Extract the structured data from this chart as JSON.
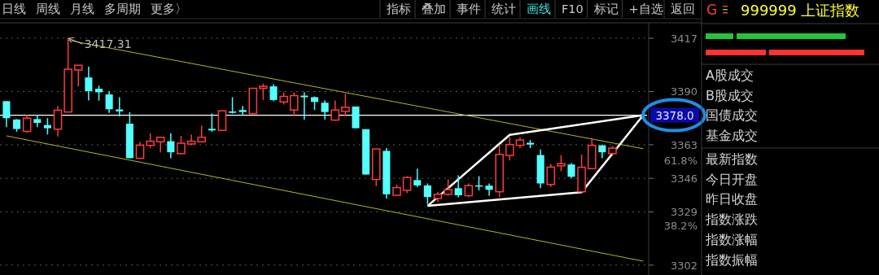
{
  "chart_data": [
    {
      "type": "candlestick",
      "categories": [
        null,
        null,
        null,
        null,
        null,
        null,
        null,
        null,
        null,
        null,
        null,
        null,
        null,
        null,
        null,
        null,
        null,
        null,
        null,
        null,
        null,
        null,
        null,
        null,
        null,
        null,
        null,
        null,
        null,
        null,
        null,
        null,
        null,
        null,
        null,
        null,
        null,
        null,
        null,
        null,
        null,
        null,
        null,
        null,
        null,
        null,
        null,
        null,
        null,
        null,
        null,
        null,
        null,
        null,
        null,
        null,
        null,
        null,
        null,
        null,
        null,
        null,
        null
      ],
      "ohlc": [
        [
          3385.1,
          3385.1,
          3371.9,
          3376.5
        ],
        [
          3375.8,
          3376.0,
          3369.6,
          3371.0
        ],
        [
          3369.8,
          3378.1,
          3369.1,
          3376.5
        ],
        [
          3376.0,
          3378.1,
          3371.9,
          3374.1
        ],
        [
          3373.0,
          3376.5,
          3368.2,
          3371.4
        ],
        [
          3370.9,
          3382.7,
          3367.2,
          3380.5
        ],
        [
          3379.6,
          3417.31,
          3379.6,
          3401.3
        ],
        [
          3400.9,
          3403.3,
          3392.6,
          3403.3
        ],
        [
          3397.1,
          3402.6,
          3385.4,
          3390.2
        ],
        [
          3391.4,
          3393.0,
          3385.4,
          3389.6
        ],
        [
          3388.5,
          3390.2,
          3379.2,
          3381.0
        ],
        [
          3380.9,
          3387.1,
          3377.4,
          3379.9
        ],
        [
          3373.7,
          3379.5,
          3356.2,
          3356.2
        ],
        [
          3356.1,
          3364.5,
          3356.1,
          3362.8
        ],
        [
          3362.7,
          3368.9,
          3361.3,
          3364.8
        ],
        [
          3364.5,
          3366.8,
          3359.2,
          3366.8
        ],
        [
          3364.8,
          3368.9,
          3356.2,
          3359.2
        ],
        [
          3358.5,
          3367.5,
          3358.5,
          3363.8
        ],
        [
          3363.4,
          3368.2,
          3362.7,
          3364.8
        ],
        [
          3364.5,
          3372.7,
          3364.5,
          3366.8
        ],
        [
          3371.1,
          3378.8,
          3369.6,
          3370.3
        ],
        [
          3370.3,
          3380.2,
          3370.3,
          3380.2
        ],
        [
          3379.9,
          3387.1,
          3378.8,
          3379.2
        ],
        [
          3380.6,
          3382.7,
          3377.8,
          3379.6
        ],
        [
          3378.8,
          3391.6,
          3378.8,
          3391.6
        ],
        [
          3391.6,
          3394.0,
          3385.7,
          3392.6
        ],
        [
          3392.6,
          3393.7,
          3385.0,
          3385.7
        ],
        [
          3384.7,
          3389.6,
          3383.4,
          3387.5
        ],
        [
          3380.6,
          3389.6,
          3377.4,
          3387.9
        ],
        [
          3387.9,
          3389.6,
          3375.8,
          3387.1
        ],
        [
          3387.1,
          3387.5,
          3380.6,
          3384.7
        ],
        [
          3384.3,
          3385.4,
          3375.8,
          3379.6
        ],
        [
          3375.5,
          3385.4,
          3375.1,
          3380.6
        ],
        [
          3379.9,
          3388.9,
          3377.8,
          3382.0
        ],
        [
          3382.4,
          3382.4,
          3371.4,
          3371.4
        ],
        [
          3370.9,
          3370.9,
          3347.9,
          3347.9
        ],
        [
          3345.4,
          3360.9,
          3342.0,
          3360.9
        ],
        [
          3359.9,
          3361.3,
          3335.8,
          3337.9
        ],
        [
          3337.4,
          3342.7,
          3337.2,
          3341.3
        ],
        [
          3339.9,
          3347.1,
          3338.5,
          3346.4
        ],
        [
          3345.1,
          3350.9,
          3341.6,
          3342.4
        ],
        [
          3342.4,
          3343.4,
          3333.0,
          3336.5
        ],
        [
          3335.8,
          3339.2,
          3334.1,
          3337.9
        ],
        [
          3337.9,
          3345.4,
          3337.2,
          3340.2
        ],
        [
          3341.0,
          3347.5,
          3336.4,
          3337.4
        ],
        [
          3337.2,
          3343.4,
          3336.4,
          3342.3
        ],
        [
          3342.4,
          3347.1,
          3339.9,
          3341.8
        ],
        [
          3342.3,
          3343.4,
          3337.2,
          3340.2
        ],
        [
          3339.2,
          3362.7,
          3336.4,
          3358.1
        ],
        [
          3357.6,
          3366.8,
          3355.1,
          3363.1
        ],
        [
          3362.7,
          3366.8,
          3361.3,
          3365.4
        ],
        [
          3364.0,
          3365.4,
          3361.3,
          3363.1
        ],
        [
          3357.8,
          3360.6,
          3341.0,
          3343.4
        ],
        [
          3342.9,
          3353.3,
          3341.6,
          3351.7
        ],
        [
          3352.3,
          3357.8,
          3349.6,
          3353.4
        ],
        [
          3353.0,
          3353.7,
          3346.1,
          3346.8
        ],
        [
          3339.2,
          3358.1,
          3339.2,
          3351.6
        ],
        [
          3350.9,
          3366.4,
          3350.9,
          3362.7
        ],
        [
          3362.7,
          3363.1,
          3356.2,
          3359.2
        ],
        [
          3358.5,
          3362.4,
          3358.1,
          3361.3
        ],
        null,
        null,
        null
      ],
      "colors": [
        "#54ffff",
        "#54ffff",
        "#ff3b3b",
        "#54ffff",
        "#54ffff",
        "#ff3b3b",
        "#ff3b3b",
        "#ff3b3b",
        "#54ffff",
        "#54ffff",
        "#54ffff",
        "#54ffff",
        "#54ffff",
        "#ff3b3b",
        "#ff3b3b",
        "#ff3b3b",
        "#54ffff",
        "#ff3b3b",
        "#ff3b3b",
        "#ff3b3b",
        "#54ffff",
        "#ff3b3b",
        "#54ffff",
        "#54ffff",
        "#ff3b3b",
        "#ff3b3b",
        "#54ffff",
        "#ff3b3b",
        "#ff3b3b",
        "#54ffff",
        "#54ffff",
        "#54ffff",
        "#ff3b3b",
        "#ff3b3b",
        "#54ffff",
        "#54ffff",
        "#ff3b3b",
        "#54ffff",
        "#ff3b3b",
        "#ff3b3b",
        "#54ffff",
        "#54ffff",
        "#ff3b3b",
        "#ff3b3b",
        "#54ffff",
        "#ff3b3b",
        "#54ffff",
        "#54ffff",
        "#ff3b3b",
        "#ff3b3b",
        "#ff3b3b",
        "#54ffff",
        "#54ffff",
        "#ff3b3b",
        "#ff3b3b",
        "#54ffff",
        "#ff3b3b",
        "#ff3b3b",
        "#54ffff",
        "#ff3b3b",
        null,
        null,
        null
      ],
      "series": [
        {
          "type": "line",
          "color": "#b4b428",
          "values": [
            null,
            null,
            null,
            null,
            null,
            null,
            3416,
            null,
            null,
            null,
            null,
            null,
            null,
            null,
            null,
            null,
            null,
            null,
            null,
            null,
            null,
            null,
            null,
            null,
            null,
            null,
            null,
            null,
            null,
            null,
            null,
            null,
            null,
            null,
            null,
            null,
            null,
            null,
            null,
            null,
            null,
            null,
            null,
            null,
            null,
            null,
            null,
            null,
            null,
            null,
            null,
            null,
            null,
            null,
            null,
            null,
            null,
            null,
            null,
            null,
            null,
            null,
            3361
          ]
        },
        {
          "type": "line",
          "color": "#b4b428",
          "values": [
            3367.5,
            null,
            null,
            null,
            null,
            null,
            null,
            null,
            null,
            null,
            null,
            null,
            null,
            null,
            null,
            null,
            null,
            null,
            null,
            null,
            null,
            null,
            null,
            null,
            null,
            null,
            null,
            null,
            null,
            null,
            null,
            null,
            null,
            null,
            null,
            null,
            null,
            null,
            null,
            null,
            null,
            null,
            null,
            null,
            null,
            null,
            null,
            null,
            null,
            null,
            null,
            null,
            null,
            null,
            null,
            null,
            null,
            null,
            null,
            null,
            null,
            null,
            3304
          ]
        },
        {
          "type": "line",
          "color": "#ffffff",
          "values": [
            null,
            null,
            null,
            null,
            null,
            null,
            null,
            null,
            null,
            null,
            null,
            null,
            null,
            null,
            null,
            null,
            null,
            null,
            null,
            null,
            null,
            null,
            null,
            null,
            null,
            null,
            null,
            null,
            null,
            null,
            null,
            null,
            null,
            null,
            null,
            null,
            null,
            null,
            null,
            null,
            null,
            3332,
            null,
            null,
            null,
            null,
            null,
            null,
            null,
            3368,
            null,
            null,
            null,
            null,
            null,
            null,
            null,
            null,
            null,
            null,
            null,
            null,
            3378
          ]
        },
        {
          "type": "line",
          "color": "#ffffff",
          "values": [
            null,
            null,
            null,
            null,
            null,
            null,
            null,
            null,
            null,
            null,
            null,
            null,
            null,
            null,
            null,
            null,
            null,
            null,
            null,
            null,
            null,
            null,
            null,
            null,
            null,
            null,
            null,
            null,
            null,
            null,
            null,
            null,
            null,
            null,
            null,
            null,
            null,
            null,
            null,
            null,
            null,
            3332,
            null,
            null,
            null,
            null,
            null,
            null,
            null,
            null,
            null,
            null,
            null,
            null,
            null,
            null,
            3339,
            null,
            null,
            null,
            null,
            null,
            3378
          ]
        }
      ],
      "ylim": [
        3297,
        3424
      ],
      "yticks": [
        3417,
        3390,
        3363,
        3346,
        3329,
        3302
      ],
      "y2lim": [
        20.3,
        111.1
      ],
      "y2ticks": [
        {
          "value": 61.8,
          "label": "61.8%"
        },
        {
          "value": 38.2,
          "label": "38.2%"
        }
      ],
      "grid": "y",
      "tick_labels": "y",
      "ref_lines": [
        {
          "axis": "y",
          "value": 3378.0,
          "label": "3378.0",
          "color": "#ffffff"
        }
      ],
      "annotations": [
        "3417.31"
      ]
    },
    {
      "type": "other",
      "title": "999999 上证指数",
      "annotations": [
        "G",
        "A股成交",
        "B股成交",
        "国债成交",
        "基金成交",
        "最新指数",
        "今日开盘",
        "昨日收盘",
        "指数涨跌",
        "指数涨幅",
        "指数振幅"
      ]
    },
    {
      "type": "other",
      "annotations": [
        "日线",
        "周线",
        "月线",
        "多周期",
        "更多〉",
        "指标",
        "叠加",
        "事件",
        "统计",
        "画线",
        "F10",
        "标记",
        "+自选",
        "返回"
      ]
    }
  ]
}
